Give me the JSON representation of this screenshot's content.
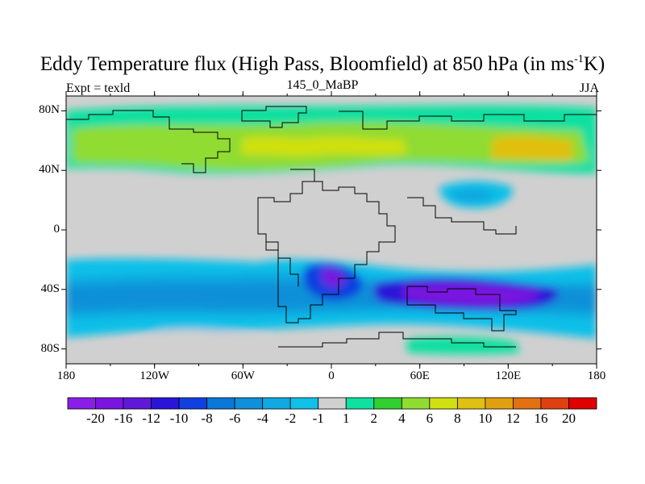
{
  "title": {
    "main": "Eddy Temperature flux (High Pass, Bloomfield) at 850 hPa (in ms",
    "sup": "-1",
    "tail": "K)"
  },
  "subtitle": {
    "left": "Expt = texld",
    "center": "145_0_MaBP",
    "right": "JJA"
  },
  "axes": {
    "y_ticks": [
      {
        "label": "80N",
        "lat": 80
      },
      {
        "label": "40N",
        "lat": 40
      },
      {
        "label": "0",
        "lat": 0
      },
      {
        "label": "40S",
        "lat": -40
      },
      {
        "label": "80S",
        "lat": -80
      }
    ],
    "x_ticks": [
      {
        "label": "180",
        "lon": -180
      },
      {
        "label": "120W",
        "lon": -120
      },
      {
        "label": "60W",
        "lon": -60
      },
      {
        "label": "0",
        "lon": 0
      },
      {
        "label": "60E",
        "lon": 60
      },
      {
        "label": "120E",
        "lon": 120
      },
      {
        "label": "180",
        "lon": 180
      }
    ],
    "lon_range": [
      -180,
      180
    ],
    "lat_range": [
      -90,
      90
    ]
  },
  "colorbar": {
    "labels": [
      "-20",
      "-16",
      "-12",
      "-10",
      "-8",
      "-6",
      "-4",
      "-2",
      "-1",
      "1",
      "2",
      "4",
      "6",
      "8",
      "10",
      "12",
      "16",
      "20"
    ],
    "colors": [
      "#8a1ee6",
      "#7a14e0",
      "#6018d8",
      "#2a14d8",
      "#1040e0",
      "#0a78d8",
      "#1090d8",
      "#10a8e0",
      "#10c0e8",
      "#d0d0d0",
      "#10e0a0",
      "#30d030",
      "#90dc30",
      "#d0e010",
      "#e0c010",
      "#e0a010",
      "#e07010",
      "#e04010",
      "#e00000"
    ]
  },
  "legend_colors": {
    "land_mask": "#d0d0d0",
    "outline": "#000000"
  }
}
